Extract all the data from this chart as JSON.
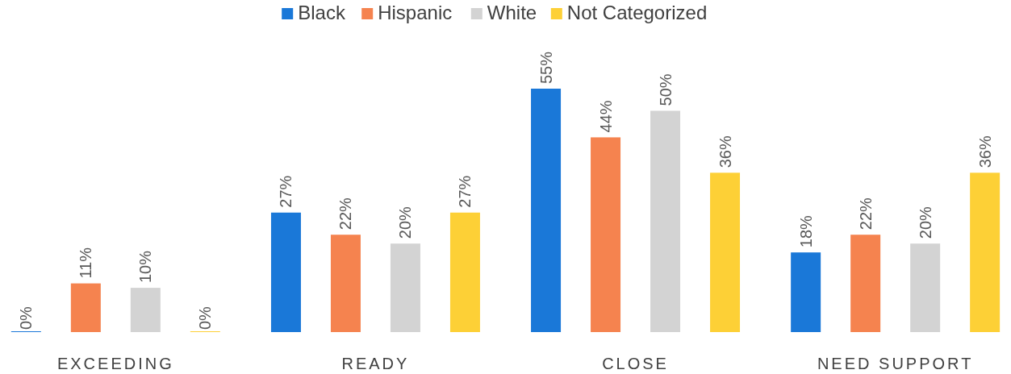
{
  "chart_data": {
    "type": "bar",
    "categories": [
      "EXCEEDING",
      "READY",
      "CLOSE",
      "NEED SUPPORT"
    ],
    "legend": "top",
    "series": [
      {
        "name": "Black",
        "color": "#1a78d8",
        "values": [
          0,
          27,
          55,
          18
        ],
        "value_labels": [
          "0%",
          "27%",
          "55%",
          "18%"
        ]
      },
      {
        "name": "Hispanic",
        "color": "#f5834f",
        "values": [
          11,
          22,
          44,
          22
        ],
        "value_labels": [
          "11%",
          "22%",
          "44%",
          "22%"
        ]
      },
      {
        "name": "White",
        "color": "#d3d3d3",
        "values": [
          10,
          20,
          50,
          20
        ],
        "value_labels": [
          "10%",
          "20%",
          "50%",
          "20%"
        ]
      },
      {
        "name": "Not Categorized",
        "color": "#fdd036",
        "values": [
          0,
          27,
          36,
          36
        ],
        "value_labels": [
          "0%",
          "27%",
          "36%",
          "36%"
        ]
      }
    ]
  }
}
